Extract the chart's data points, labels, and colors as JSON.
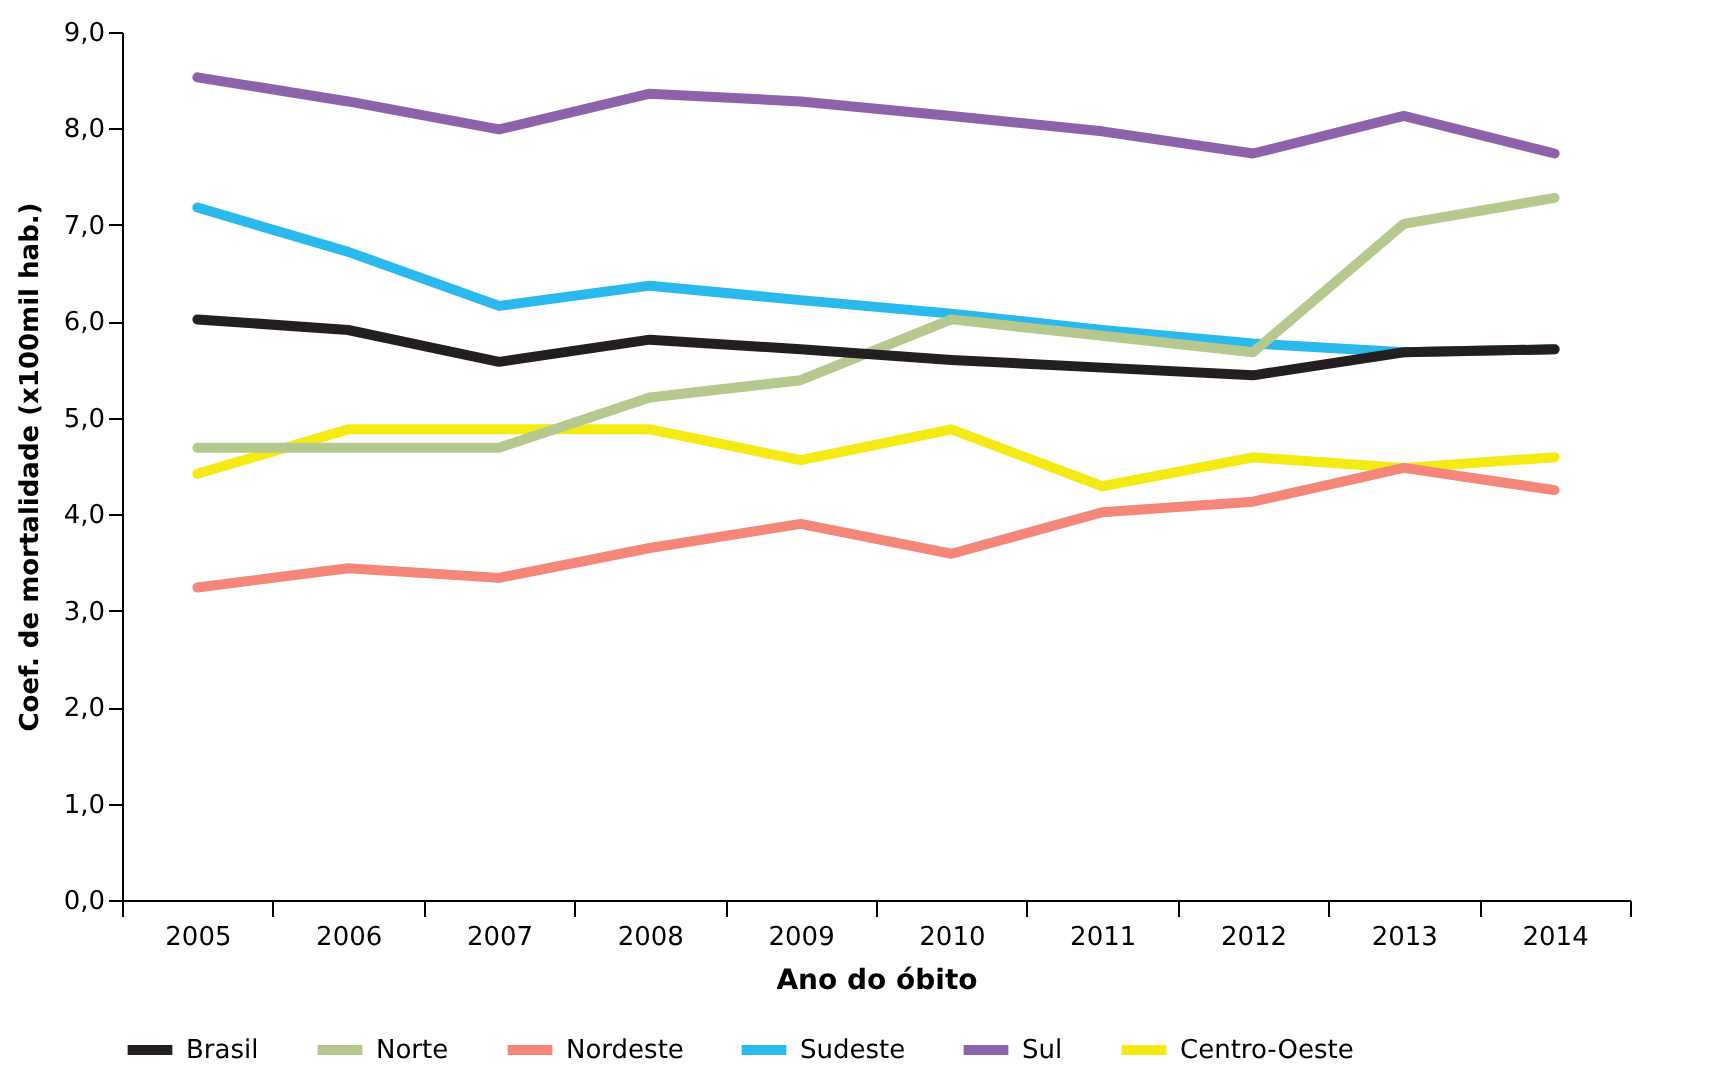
{
  "chart_data": {
    "type": "line",
    "xlabel": "Ano do óbito",
    "ylabel": "Coef. de mortalidade (x100mil hab.)",
    "categories": [
      "2005",
      "2006",
      "2007",
      "2008",
      "2009",
      "2010",
      "2011",
      "2012",
      "2013",
      "2014"
    ],
    "ylim": [
      0,
      9
    ],
    "yticks": [
      {
        "value": 0,
        "label": "0,0"
      },
      {
        "value": 1,
        "label": "1,0"
      },
      {
        "value": 2,
        "label": "2,0"
      },
      {
        "value": 3,
        "label": "3,0"
      },
      {
        "value": 4,
        "label": "4,0"
      },
      {
        "value": 5,
        "label": "5,0"
      },
      {
        "value": 6,
        "label": "6,0"
      },
      {
        "value": 7,
        "label": "7,0"
      },
      {
        "value": 8,
        "label": "8,0"
      },
      {
        "value": 9,
        "label": "9,0"
      }
    ],
    "grid": false,
    "legend": "bottom",
    "line_style": "solid",
    "marker": "none",
    "series": [
      {
        "name": "Brasil",
        "color": "#231f20",
        "values": [
          6.02,
          5.91,
          5.58,
          5.81,
          5.71,
          5.6,
          5.52,
          5.44,
          5.68,
          5.71
        ]
      },
      {
        "name": "Norte",
        "color": "#b5c98e",
        "values": [
          4.69,
          4.69,
          4.69,
          5.21,
          5.39,
          6.02,
          5.85,
          5.68,
          7.01,
          7.28
        ]
      },
      {
        "name": "Nordeste",
        "color": "#f4877a",
        "values": [
          3.24,
          3.44,
          3.34,
          3.65,
          3.9,
          3.59,
          4.02,
          4.13,
          4.48,
          4.25
        ]
      },
      {
        "name": "Sudeste",
        "color": "#29b9ec",
        "values": [
          7.18,
          6.72,
          6.16,
          6.37,
          6.22,
          6.08,
          5.91,
          5.77,
          5.68,
          5.71
        ]
      },
      {
        "name": "Sul",
        "color": "#8e62aa",
        "values": [
          8.53,
          8.28,
          7.99,
          8.36,
          8.28,
          8.13,
          7.97,
          7.74,
          8.13,
          7.74
        ]
      },
      {
        "name": "Centro-Oeste",
        "color": "#f5ea14",
        "values": [
          4.42,
          4.88,
          4.88,
          4.88,
          4.56,
          4.88,
          4.29,
          4.59,
          4.48,
          4.59
        ]
      }
    ]
  }
}
